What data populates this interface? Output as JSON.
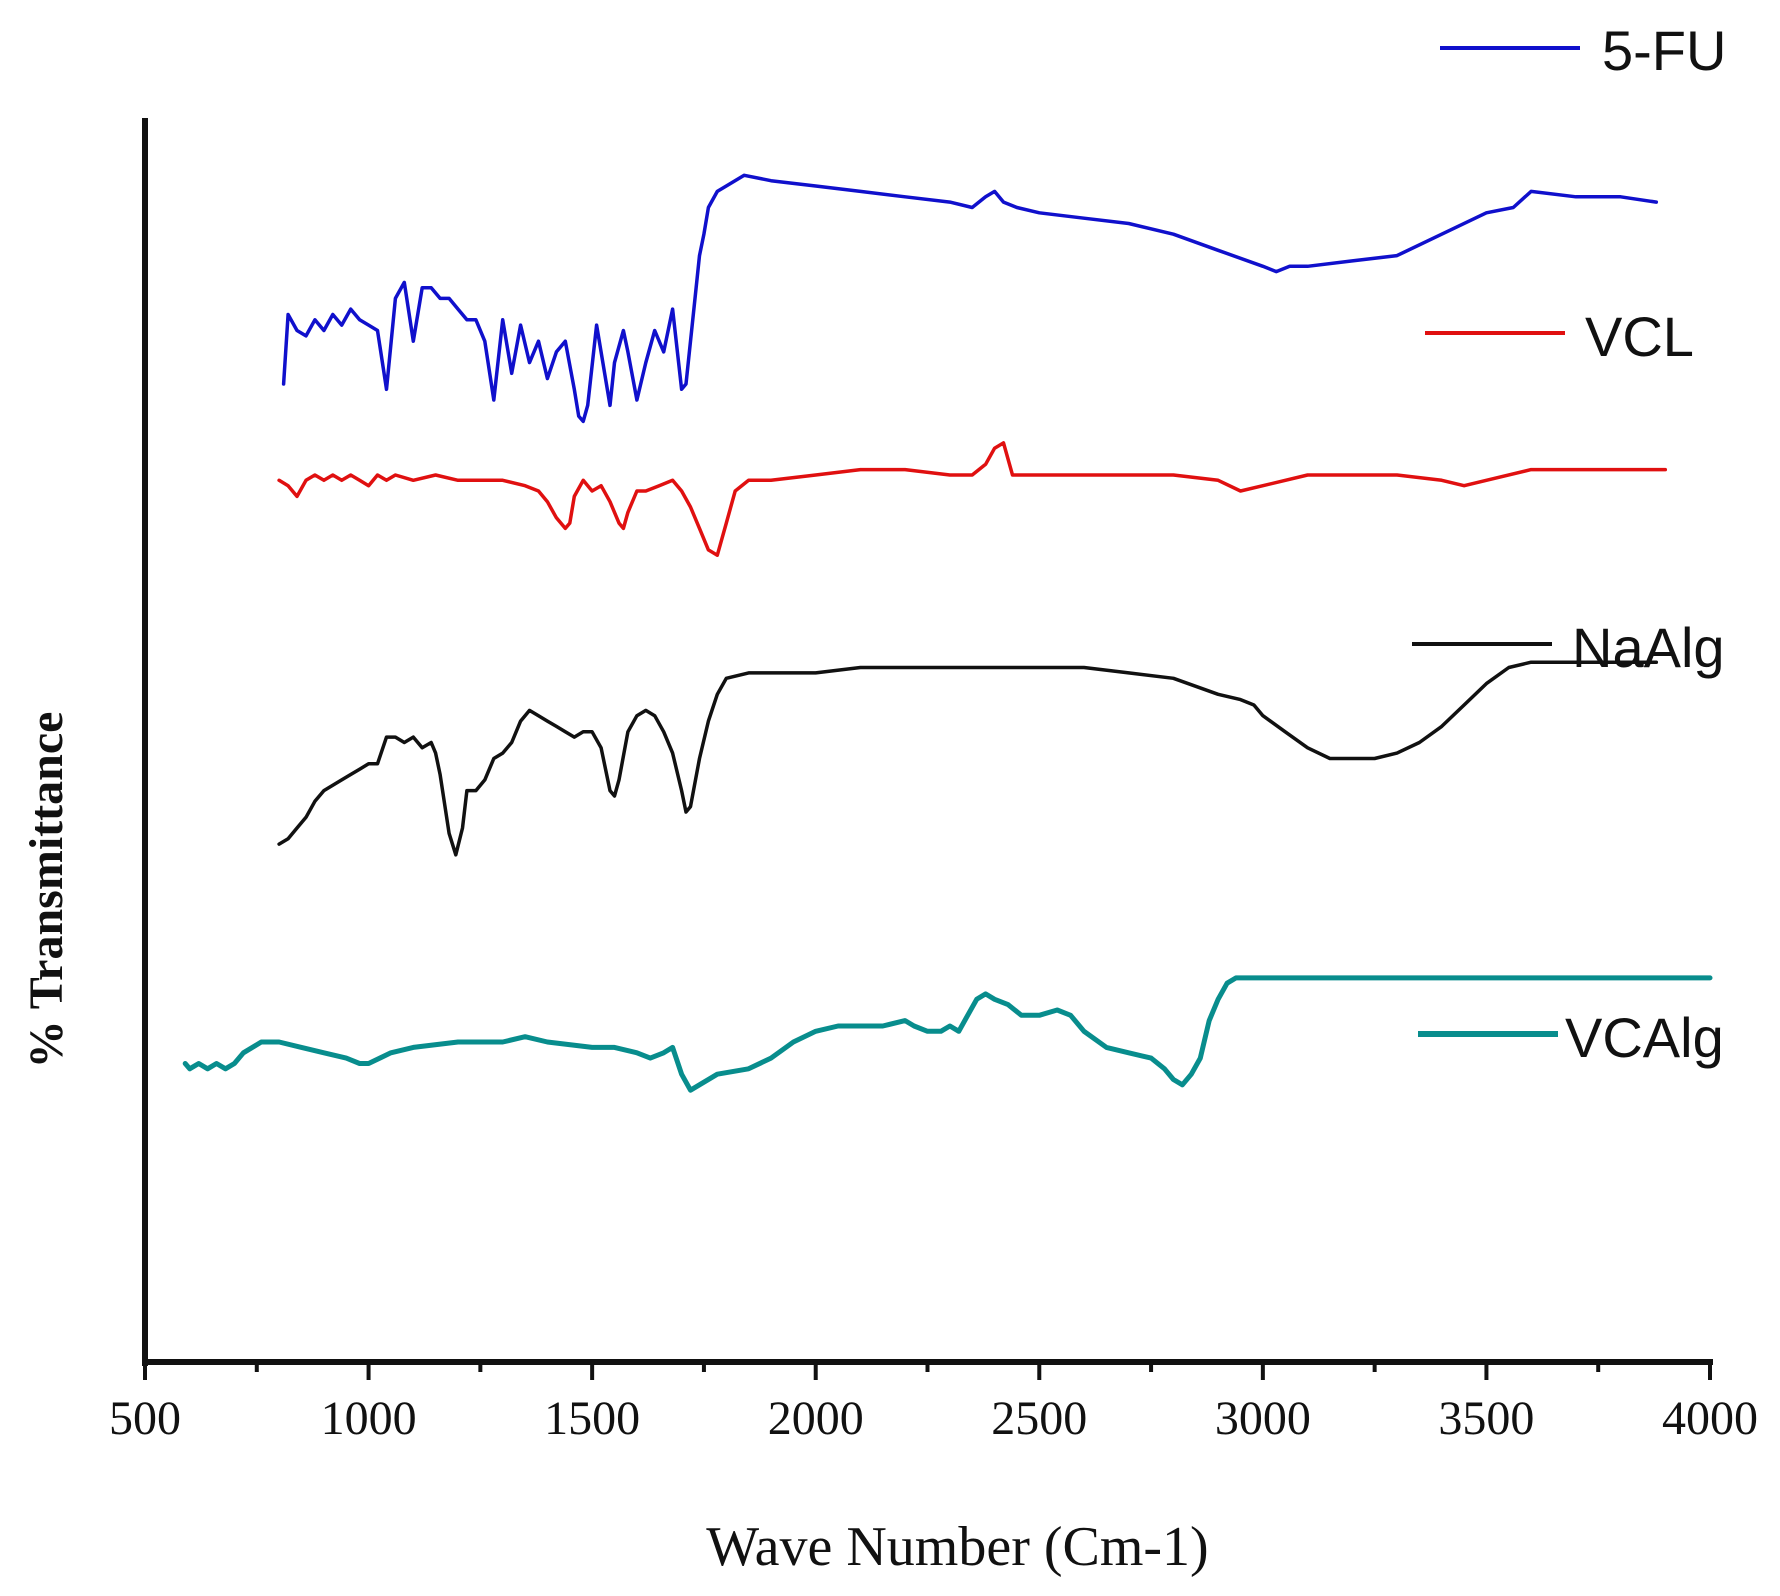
{
  "chart_data": {
    "type": "line",
    "title": "",
    "xlabel": "Wave Number (Cm-1)",
    "ylabel": "% Transmittance",
    "xlim": [
      500,
      4000
    ],
    "ylim": [
      0,
      100
    ],
    "grid": false,
    "x_ticks": [
      500,
      1000,
      1500,
      2000,
      2500,
      3000,
      3500,
      4000
    ],
    "x_tick_labels": [
      "500",
      "1000",
      "1500",
      "2000",
      "2500",
      "3000",
      "3500",
      "4000"
    ],
    "legend_placement": "right, stacked next to each trace",
    "series": [
      {
        "name": "5-FU",
        "color": "#1010cc",
        "points": [
          [
            810,
            80
          ],
          [
            820,
            86.5
          ],
          [
            840,
            85
          ],
          [
            860,
            84.5
          ],
          [
            880,
            86
          ],
          [
            900,
            85
          ],
          [
            920,
            86.5
          ],
          [
            940,
            85.5
          ],
          [
            960,
            87
          ],
          [
            980,
            86
          ],
          [
            1000,
            85.5
          ],
          [
            1020,
            85
          ],
          [
            1040,
            79.5
          ],
          [
            1060,
            88
          ],
          [
            1080,
            89.5
          ],
          [
            1100,
            84
          ],
          [
            1120,
            89
          ],
          [
            1140,
            89
          ],
          [
            1160,
            88
          ],
          [
            1180,
            88
          ],
          [
            1200,
            87
          ],
          [
            1220,
            86
          ],
          [
            1240,
            86
          ],
          [
            1260,
            84
          ],
          [
            1280,
            78.5
          ],
          [
            1300,
            86
          ],
          [
            1320,
            81
          ],
          [
            1340,
            85.5
          ],
          [
            1360,
            82
          ],
          [
            1380,
            84
          ],
          [
            1400,
            80.5
          ],
          [
            1420,
            83
          ],
          [
            1440,
            84
          ],
          [
            1460,
            79.5
          ],
          [
            1470,
            77
          ],
          [
            1480,
            76.5
          ],
          [
            1490,
            78
          ],
          [
            1510,
            85.5
          ],
          [
            1540,
            78
          ],
          [
            1550,
            82
          ],
          [
            1570,
            85
          ],
          [
            1580,
            83
          ],
          [
            1600,
            78.5
          ],
          [
            1620,
            82
          ],
          [
            1640,
            85
          ],
          [
            1660,
            83
          ],
          [
            1680,
            87
          ],
          [
            1700,
            79.5
          ],
          [
            1710,
            80
          ],
          [
            1720,
            84
          ],
          [
            1730,
            88
          ],
          [
            1740,
            92
          ],
          [
            1750,
            94
          ],
          [
            1760,
            96.5
          ],
          [
            1780,
            98
          ],
          [
            1800,
            98.5
          ],
          [
            1840,
            99.5
          ],
          [
            1900,
            99
          ],
          [
            2000,
            98.5
          ],
          [
            2100,
            98
          ],
          [
            2200,
            97.5
          ],
          [
            2300,
            97
          ],
          [
            2350,
            96.5
          ],
          [
            2380,
            97.5
          ],
          [
            2400,
            98
          ],
          [
            2420,
            97
          ],
          [
            2450,
            96.5
          ],
          [
            2500,
            96
          ],
          [
            2600,
            95.5
          ],
          [
            2700,
            95
          ],
          [
            2800,
            94
          ],
          [
            2900,
            92.5
          ],
          [
            3000,
            91
          ],
          [
            3030,
            90.5
          ],
          [
            3060,
            91
          ],
          [
            3100,
            91
          ],
          [
            3200,
            91.5
          ],
          [
            3300,
            92
          ],
          [
            3400,
            94
          ],
          [
            3500,
            96
          ],
          [
            3560,
            96.5
          ],
          [
            3600,
            98
          ],
          [
            3700,
            97.5
          ],
          [
            3800,
            97.5
          ],
          [
            3880,
            97
          ]
        ]
      },
      {
        "name": "VCL",
        "color": "#e01010",
        "points": [
          [
            800,
            71
          ],
          [
            820,
            70.5
          ],
          [
            840,
            69.5
          ],
          [
            860,
            71
          ],
          [
            880,
            71.5
          ],
          [
            900,
            71
          ],
          [
            920,
            71.5
          ],
          [
            940,
            71
          ],
          [
            960,
            71.5
          ],
          [
            980,
            71
          ],
          [
            1000,
            70.5
          ],
          [
            1020,
            71.5
          ],
          [
            1040,
            71
          ],
          [
            1060,
            71.5
          ],
          [
            1100,
            71
          ],
          [
            1150,
            71.5
          ],
          [
            1200,
            71
          ],
          [
            1300,
            71
          ],
          [
            1350,
            70.5
          ],
          [
            1380,
            70
          ],
          [
            1400,
            69
          ],
          [
            1420,
            67.5
          ],
          [
            1440,
            66.5
          ],
          [
            1450,
            67
          ],
          [
            1460,
            69.5
          ],
          [
            1480,
            71
          ],
          [
            1500,
            70
          ],
          [
            1520,
            70.5
          ],
          [
            1540,
            69
          ],
          [
            1560,
            67
          ],
          [
            1570,
            66.5
          ],
          [
            1580,
            68
          ],
          [
            1600,
            70
          ],
          [
            1620,
            70
          ],
          [
            1650,
            70.5
          ],
          [
            1680,
            71
          ],
          [
            1700,
            70
          ],
          [
            1720,
            68.5
          ],
          [
            1740,
            66.5
          ],
          [
            1760,
            64.5
          ],
          [
            1780,
            64
          ],
          [
            1800,
            67
          ],
          [
            1820,
            70
          ],
          [
            1850,
            71
          ],
          [
            1900,
            71
          ],
          [
            2000,
            71.5
          ],
          [
            2100,
            72
          ],
          [
            2200,
            72
          ],
          [
            2300,
            71.5
          ],
          [
            2350,
            71.5
          ],
          [
            2380,
            72.5
          ],
          [
            2400,
            74
          ],
          [
            2420,
            74.5
          ],
          [
            2440,
            71.5
          ],
          [
            2500,
            71.5
          ],
          [
            2600,
            71.5
          ],
          [
            2700,
            71.5
          ],
          [
            2800,
            71.5
          ],
          [
            2900,
            71
          ],
          [
            2950,
            70
          ],
          [
            3000,
            70.5
          ],
          [
            3100,
            71.5
          ],
          [
            3200,
            71.5
          ],
          [
            3300,
            71.5
          ],
          [
            3400,
            71
          ],
          [
            3450,
            70.5
          ],
          [
            3500,
            71
          ],
          [
            3600,
            72
          ],
          [
            3700,
            72
          ],
          [
            3800,
            72
          ],
          [
            3900,
            72
          ]
        ]
      },
      {
        "name": "NaAlg",
        "color": "#111111",
        "points": [
          [
            800,
            37
          ],
          [
            820,
            37.5
          ],
          [
            840,
            38.5
          ],
          [
            860,
            39.5
          ],
          [
            880,
            41
          ],
          [
            900,
            42
          ],
          [
            920,
            42.5
          ],
          [
            940,
            43
          ],
          [
            960,
            43.5
          ],
          [
            980,
            44
          ],
          [
            1000,
            44.5
          ],
          [
            1020,
            44.5
          ],
          [
            1040,
            47
          ],
          [
            1060,
            47
          ],
          [
            1080,
            46.5
          ],
          [
            1100,
            47
          ],
          [
            1120,
            46
          ],
          [
            1140,
            46.5
          ],
          [
            1150,
            45.5
          ],
          [
            1160,
            43.5
          ],
          [
            1180,
            38
          ],
          [
            1195,
            36
          ],
          [
            1210,
            38.5
          ],
          [
            1220,
            42
          ],
          [
            1240,
            42
          ],
          [
            1260,
            43
          ],
          [
            1280,
            45
          ],
          [
            1300,
            45.5
          ],
          [
            1320,
            46.5
          ],
          [
            1340,
            48.5
          ],
          [
            1360,
            49.5
          ],
          [
            1380,
            49
          ],
          [
            1400,
            48.5
          ],
          [
            1420,
            48
          ],
          [
            1440,
            47.5
          ],
          [
            1460,
            47
          ],
          [
            1480,
            47.5
          ],
          [
            1500,
            47.5
          ],
          [
            1520,
            46
          ],
          [
            1540,
            42
          ],
          [
            1550,
            41.5
          ],
          [
            1560,
            43
          ],
          [
            1580,
            47.5
          ],
          [
            1600,
            49
          ],
          [
            1620,
            49.5
          ],
          [
            1640,
            49
          ],
          [
            1660,
            47.5
          ],
          [
            1680,
            45.5
          ],
          [
            1700,
            42
          ],
          [
            1710,
            40
          ],
          [
            1720,
            40.5
          ],
          [
            1740,
            45
          ],
          [
            1760,
            48.5
          ],
          [
            1780,
            51
          ],
          [
            1800,
            52.5
          ],
          [
            1850,
            53
          ],
          [
            1900,
            53
          ],
          [
            2000,
            53
          ],
          [
            2100,
            53.5
          ],
          [
            2200,
            53.5
          ],
          [
            2300,
            53.5
          ],
          [
            2400,
            53.5
          ],
          [
            2500,
            53.5
          ],
          [
            2600,
            53.5
          ],
          [
            2700,
            53
          ],
          [
            2800,
            52.5
          ],
          [
            2900,
            51
          ],
          [
            2950,
            50.5
          ],
          [
            2980,
            50
          ],
          [
            3000,
            49
          ],
          [
            3050,
            47.5
          ],
          [
            3100,
            46
          ],
          [
            3150,
            45
          ],
          [
            3200,
            45
          ],
          [
            3250,
            45
          ],
          [
            3300,
            45.5
          ],
          [
            3350,
            46.5
          ],
          [
            3400,
            48
          ],
          [
            3450,
            50
          ],
          [
            3500,
            52
          ],
          [
            3550,
            53.5
          ],
          [
            3600,
            54
          ],
          [
            3700,
            54
          ],
          [
            3800,
            54
          ],
          [
            3880,
            54
          ]
        ]
      },
      {
        "name": "VCAlg",
        "color": "#088d8d",
        "points": [
          [
            590,
            16.5
          ],
          [
            600,
            16
          ],
          [
            620,
            16.5
          ],
          [
            640,
            16
          ],
          [
            660,
            16.5
          ],
          [
            680,
            16
          ],
          [
            700,
            16.5
          ],
          [
            720,
            17.5
          ],
          [
            760,
            18.5
          ],
          [
            800,
            18.5
          ],
          [
            850,
            18
          ],
          [
            900,
            17.5
          ],
          [
            950,
            17
          ],
          [
            980,
            16.5
          ],
          [
            1000,
            16.5
          ],
          [
            1050,
            17.5
          ],
          [
            1100,
            18
          ],
          [
            1200,
            18.5
          ],
          [
            1300,
            18.5
          ],
          [
            1350,
            19
          ],
          [
            1400,
            18.5
          ],
          [
            1500,
            18
          ],
          [
            1550,
            18
          ],
          [
            1600,
            17.5
          ],
          [
            1630,
            17
          ],
          [
            1660,
            17.5
          ],
          [
            1680,
            18
          ],
          [
            1700,
            15.5
          ],
          [
            1720,
            14
          ],
          [
            1740,
            14.5
          ],
          [
            1780,
            15.5
          ],
          [
            1850,
            16
          ],
          [
            1900,
            17
          ],
          [
            1950,
            18.5
          ],
          [
            2000,
            19.5
          ],
          [
            2050,
            20
          ],
          [
            2100,
            20
          ],
          [
            2150,
            20
          ],
          [
            2200,
            20.5
          ],
          [
            2220,
            20
          ],
          [
            2250,
            19.5
          ],
          [
            2280,
            19.5
          ],
          [
            2300,
            20
          ],
          [
            2320,
            19.5
          ],
          [
            2340,
            21
          ],
          [
            2360,
            22.5
          ],
          [
            2380,
            23
          ],
          [
            2400,
            22.5
          ],
          [
            2430,
            22
          ],
          [
            2460,
            21
          ],
          [
            2500,
            21
          ],
          [
            2540,
            21.5
          ],
          [
            2570,
            21
          ],
          [
            2600,
            19.5
          ],
          [
            2650,
            18
          ],
          [
            2700,
            17.5
          ],
          [
            2750,
            17
          ],
          [
            2780,
            16
          ],
          [
            2800,
            15
          ],
          [
            2820,
            14.5
          ],
          [
            2840,
            15.5
          ],
          [
            2860,
            17
          ],
          [
            2880,
            20.5
          ],
          [
            2900,
            22.5
          ],
          [
            2920,
            24
          ],
          [
            2940,
            24.5
          ],
          [
            3000,
            24.5
          ],
          [
            3100,
            24.5
          ],
          [
            3200,
            24.5
          ],
          [
            3300,
            24.5
          ],
          [
            3400,
            24.5
          ],
          [
            3500,
            24.5
          ],
          [
            3600,
            24.5
          ],
          [
            3700,
            24.5
          ],
          [
            3800,
            24.5
          ],
          [
            3900,
            24.5
          ],
          [
            4000,
            24.5
          ]
        ]
      }
    ]
  }
}
